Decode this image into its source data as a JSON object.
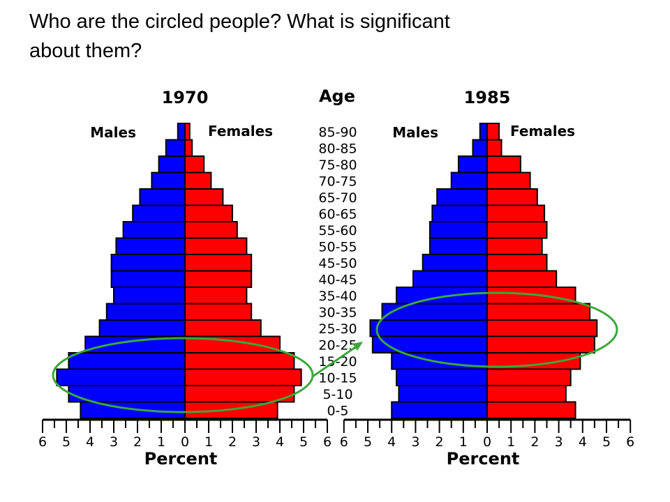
{
  "slide": {
    "question_line1": "Who are the circled people?  What is significant",
    "question_line2": "about them?"
  },
  "colors": {
    "males": "#0000ff",
    "females": "#ff0000",
    "outline": "#000000",
    "circle": "#3aa83a"
  },
  "chart_data": [
    {
      "type": "bar",
      "orientation": "horizontal-population-pyramid",
      "title": "1970",
      "xlabel": "Percent",
      "center_label": "Age",
      "xlim": [
        -6,
        6
      ],
      "x_ticks": [
        "6",
        "5",
        "4",
        "3",
        "2",
        "1",
        "0",
        "1",
        "2",
        "3",
        "4",
        "5",
        "6"
      ],
      "categories": [
        "0-5",
        "5-10",
        "10-15",
        "15-20",
        "20-25",
        "25-30",
        "30-35",
        "35-40",
        "40-45",
        "45-50",
        "50-55",
        "55-60",
        "60-65",
        "65-70",
        "70-75",
        "75-80",
        "80-85",
        "85-90"
      ],
      "series": [
        {
          "name": "Males",
          "values": [
            4.4,
            4.9,
            5.4,
            4.9,
            4.2,
            3.6,
            3.3,
            3.0,
            3.1,
            3.1,
            2.9,
            2.6,
            2.2,
            1.9,
            1.4,
            1.1,
            0.8,
            0.3
          ]
        },
        {
          "name": "Females",
          "values": [
            3.9,
            4.6,
            4.9,
            4.6,
            4.0,
            3.2,
            2.8,
            2.6,
            2.8,
            2.8,
            2.6,
            2.2,
            2.0,
            1.6,
            1.1,
            0.8,
            0.3,
            0.2
          ]
        }
      ]
    },
    {
      "type": "bar",
      "orientation": "horizontal-population-pyramid",
      "title": "1985",
      "xlabel": "Percent",
      "xlim": [
        -6,
        6
      ],
      "x_ticks": [
        "6",
        "5",
        "4",
        "3",
        "2",
        "1",
        "0",
        "1",
        "2",
        "3",
        "4",
        "5",
        "6"
      ],
      "categories": [
        "0-5",
        "5-10",
        "10-15",
        "15-20",
        "20-25",
        "25-30",
        "30-35",
        "35-40",
        "40-45",
        "45-50",
        "50-55",
        "55-60",
        "60-65",
        "65-70",
        "70-75",
        "75-80",
        "80-85",
        "85-90"
      ],
      "series": [
        {
          "name": "Males",
          "values": [
            4.0,
            3.7,
            3.8,
            4.0,
            4.8,
            4.9,
            4.4,
            3.8,
            3.1,
            2.7,
            2.4,
            2.4,
            2.3,
            2.1,
            1.5,
            1.2,
            0.6,
            0.3
          ]
        },
        {
          "name": "Females",
          "values": [
            3.7,
            3.3,
            3.5,
            3.9,
            4.5,
            4.6,
            4.3,
            3.7,
            2.9,
            2.5,
            2.3,
            2.5,
            2.4,
            2.1,
            1.8,
            1.4,
            0.6,
            0.5
          ]
        }
      ]
    }
  ]
}
